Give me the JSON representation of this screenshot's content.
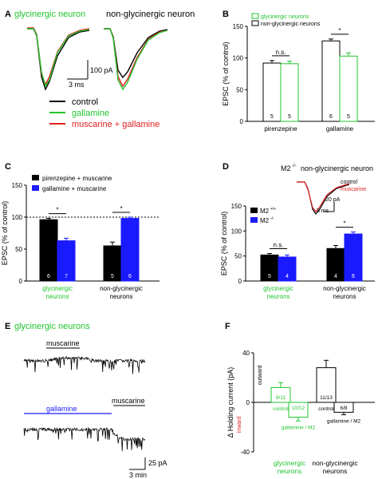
{
  "colors": {
    "green": "#22c42e",
    "red": "#e02020",
    "blue": "#1a1aff",
    "black": "#000000"
  },
  "panelA": {
    "letter": "A",
    "left_title": "glycinergic neuron",
    "right_title": "non-glycinergic neuron",
    "scale_y": "100 pA",
    "scale_x": "3 ms",
    "legend": [
      "control",
      "gallamine",
      "muscarine + gallamine"
    ]
  },
  "panelE": {
    "letter": "E",
    "title": "glycinergic neurons",
    "trace1_label": "muscarine",
    "trace2_label_a": "gallamine",
    "trace2_label_b": "muscarine",
    "scale_y": "25 pA",
    "scale_x": "3 min"
  },
  "chart_data": [
    {
      "panel": "B",
      "type": "bar",
      "ylabel": "EPSC (% of control)",
      "ylim": [
        0,
        150
      ],
      "yticks": [
        0,
        50,
        100,
        150
      ],
      "legend": [
        "glycinergic neurons",
        "non-glycinergic neurons"
      ],
      "legend_placement": "top-left",
      "groups": [
        {
          "label": "pirenzepine",
          "significance": "n.s.",
          "bars": [
            {
              "series": "non-glycinergic neurons",
              "value": 92,
              "err": 4,
              "n": "5"
            },
            {
              "series": "glycinergic neurons",
              "value": 91,
              "err": 4,
              "n": "5"
            }
          ]
        },
        {
          "label": "gallamine",
          "significance": "*",
          "bars": [
            {
              "series": "non-glycinergic neurons",
              "value": 127,
              "err": 3,
              "n": "6"
            },
            {
              "series": "glycinergic neurons",
              "value": 103,
              "err": 5,
              "n": "5"
            }
          ]
        }
      ]
    },
    {
      "panel": "C",
      "type": "bar",
      "ylabel": "EPSC (% of control)",
      "ylim": [
        0,
        150
      ],
      "yticks": [
        0,
        50,
        100,
        150
      ],
      "reference_line": 100,
      "legend": [
        "pirenzepine + muscarine",
        "gallamine + muscarine"
      ],
      "legend_placement": "top-left",
      "groups": [
        {
          "label": "glycinergic neurons",
          "label_color": "green",
          "significance": "*",
          "bars": [
            {
              "series": "pirenzepine + muscarine",
              "value": 96,
              "err": 2,
              "n": "6"
            },
            {
              "series": "gallamine + muscarine",
              "value": 63,
              "err": 4,
              "n": "7"
            }
          ]
        },
        {
          "label": "non-glycinergic neurons",
          "label_color": "black",
          "significance": "*",
          "bars": [
            {
              "series": "pirenzepine + muscarine",
              "value": 55,
              "err": 6,
              "n": "5"
            },
            {
              "series": "gallamine + muscarine",
              "value": 98,
              "err": 2,
              "n": "6"
            }
          ]
        }
      ]
    },
    {
      "panel": "D",
      "type": "bar",
      "ylabel": "EPSC (% of control)",
      "ylim": [
        0,
        150
      ],
      "yticks": [
        0,
        50,
        100,
        150
      ],
      "legend": [
        "M2",
        "M2"
      ],
      "legend_placement": "top-left",
      "inset": {
        "title": "M2",
        "title_suffix": "non-glycinergic neuron",
        "labels": [
          "control",
          "muscarine"
        ],
        "scale_y": "20 pA",
        "scale_x": "3 ms"
      },
      "groups": [
        {
          "label": "glycinergic neurons",
          "label_color": "green",
          "significance": "n.s.",
          "bars": [
            {
              "series": "M2 +/+",
              "value": 52,
              "err": 3,
              "n": "5"
            },
            {
              "series": "M2 -/-",
              "value": 48,
              "err": 4,
              "n": "4"
            }
          ]
        },
        {
          "label": "non-glycinergic neurons",
          "label_color": "black",
          "significance": "*",
          "bars": [
            {
              "series": "M2 +/+",
              "value": 65,
              "err": 6,
              "n": "4"
            },
            {
              "series": "M2 -/-",
              "value": 94,
              "err": 4,
              "n": "6"
            }
          ]
        }
      ]
    },
    {
      "panel": "F",
      "type": "bar",
      "ylabel": "Δ Holding current (pA)",
      "ylim": [
        -40,
        40
      ],
      "yticks": [
        -40,
        0,
        40
      ],
      "axis_notes": [
        "outward",
        "inward"
      ],
      "groups": [
        {
          "label": "glycinergic neurons",
          "label_color": "green",
          "bars": [
            {
              "name": "control",
              "value": 12,
              "err": 4,
              "n": "9/11",
              "color": "green"
            },
            {
              "name": "gallamine / M2",
              "value": -12,
              "err": 3,
              "n": "10/12",
              "color": "green"
            }
          ]
        },
        {
          "label": "non-glycinergic neurons",
          "label_color": "black",
          "bars": [
            {
              "name": "control",
              "value": 28,
              "err": 6,
              "n": "11/13",
              "color": "black"
            },
            {
              "name": "gallamine / M2",
              "value": -8,
              "err": 2,
              "n": "6/8",
              "color": "black"
            }
          ]
        }
      ]
    }
  ]
}
